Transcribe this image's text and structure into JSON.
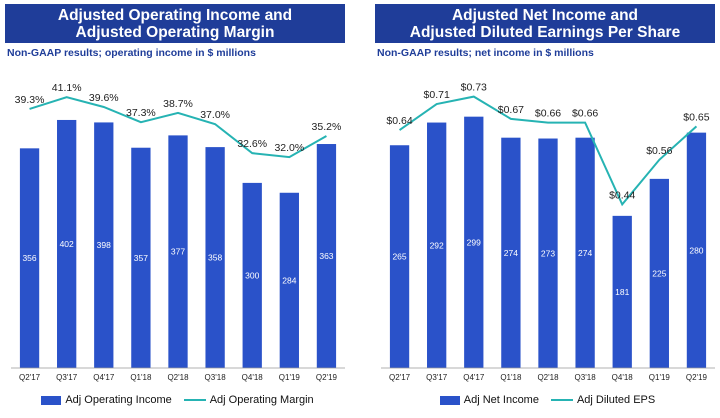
{
  "colors": {
    "bar": "#2a52c9",
    "line": "#26b3b3",
    "title_bg": "#1f3d99"
  },
  "charts": [
    {
      "title_line1": "Adjusted Operating Income and",
      "title_line2": "Adjusted Operating Margin",
      "subtitle": "Non-GAAP results; operating income in $ millions",
      "legend": {
        "bar": "Adj Operating Income",
        "line": "Adj Operating Margin"
      }
    },
    {
      "title_line1": "Adjusted Net Income and",
      "title_line2": "Adjusted Diluted Earnings Per Share",
      "subtitle": "Non-GAAP results; net income in $ millions",
      "legend": {
        "bar": "Adj Net Income",
        "line": "Adj Diluted EPS"
      }
    }
  ],
  "chart_data": [
    {
      "type": "bar",
      "title": "Adjusted Operating Income and Adjusted Operating Margin",
      "subtitle": "Non-GAAP results; operating income in $ millions",
      "categories": [
        "Q2'17",
        "Q3'17",
        "Q4'17",
        "Q1'18",
        "Q2'18",
        "Q3'18",
        "Q4'18",
        "Q1'19",
        "Q2'19"
      ],
      "series": [
        {
          "name": "Adj Operating Income",
          "type": "bar",
          "values": [
            356,
            402,
            398,
            357,
            377,
            358,
            300,
            284,
            363
          ]
        },
        {
          "name": "Adj Operating Margin",
          "type": "line",
          "values": [
            39.3,
            41.1,
            39.6,
            37.3,
            38.7,
            37.0,
            32.6,
            32.0,
            35.2
          ],
          "labels": [
            "39.3%",
            "41.1%",
            "39.6%",
            "37.3%",
            "38.7%",
            "37.0%",
            "32.6%",
            "32.0%",
            "35.2%"
          ]
        }
      ],
      "ylim": [
        0,
        470
      ],
      "line_ylim": [
        0,
        44
      ],
      "grid": false,
      "legend_position": "bottom"
    },
    {
      "type": "bar",
      "title": "Adjusted Net Income and Adjusted Diluted Earnings Per Share",
      "subtitle": "Non-GAAP results; net income in $ millions",
      "categories": [
        "Q2'17",
        "Q3'17",
        "Q4'17",
        "Q1'18",
        "Q2'18",
        "Q3'18",
        "Q4'18",
        "Q1'19",
        "Q2'19"
      ],
      "series": [
        {
          "name": "Adj Net Income",
          "type": "bar",
          "values": [
            265,
            292,
            299,
            274,
            273,
            274,
            181,
            225,
            280
          ]
        },
        {
          "name": "Adj Diluted EPS",
          "type": "line",
          "values": [
            0.64,
            0.71,
            0.73,
            0.67,
            0.66,
            0.66,
            0.44,
            0.56,
            0.65
          ],
          "labels": [
            "$0.64",
            "$0.71",
            "$0.73",
            "$0.67",
            "$0.66",
            "$0.66",
            "$0.44",
            "$0.56",
            "$0.65"
          ]
        }
      ],
      "ylim": [
        0,
        345
      ],
      "line_ylim": [
        0,
        0.78
      ],
      "grid": false,
      "legend_position": "bottom"
    }
  ]
}
